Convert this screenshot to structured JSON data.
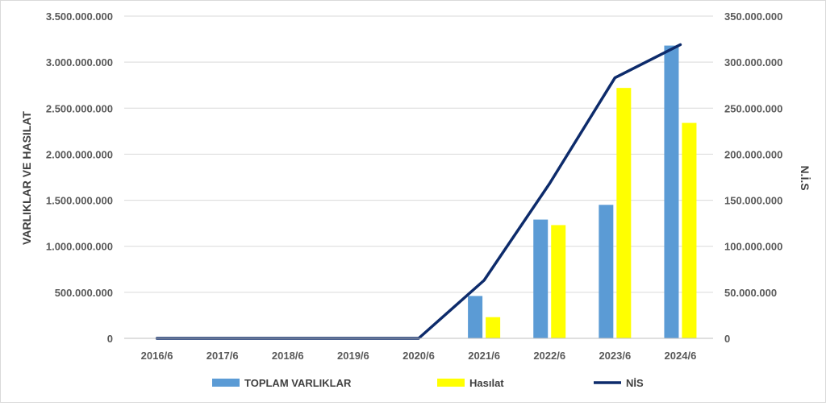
{
  "chart_data": {
    "type": "bar",
    "categories": [
      "2016/6",
      "2017/6",
      "2018/6",
      "2019/6",
      "2020/6",
      "2021/6",
      "2022/6",
      "2023/6",
      "2024/6"
    ],
    "series": [
      {
        "name": "TOPLAM VARLIKLAR",
        "type": "bar",
        "axis": "left",
        "color": "#5b9bd5",
        "values": [
          0,
          0,
          0,
          0,
          0,
          460000000,
          1290000000,
          1450000000,
          3180000000
        ]
      },
      {
        "name": "Hasılat",
        "type": "bar",
        "axis": "left",
        "color": "#ffff00",
        "values": [
          0,
          0,
          0,
          0,
          0,
          230000000,
          1230000000,
          2720000000,
          2340000000
        ]
      },
      {
        "name": "NİS",
        "type": "line",
        "axis": "right",
        "color": "#0d2b6b",
        "values": [
          0,
          0,
          0,
          0,
          0,
          63000000,
          168000000,
          283000000,
          319000000
        ]
      }
    ],
    "ylabel": "VARLIKLAR VE HASILAT",
    "y2label": "N.İ.S",
    "ylim": [
      0,
      3500000000
    ],
    "y2lim": [
      0,
      350000000
    ],
    "yticks": [
      "0",
      "500.000.000",
      "1.000.000.000",
      "1.500.000.000",
      "2.000.000.000",
      "2.500.000.000",
      "3.000.000.000",
      "3.500.000.000"
    ],
    "y2ticks": [
      "0",
      "50.000.000",
      "100.000.000",
      "150.000.000",
      "200.000.000",
      "250.000.000",
      "300.000.000",
      "350.000.000"
    ],
    "grid": true,
    "legend_position": "bottom"
  }
}
